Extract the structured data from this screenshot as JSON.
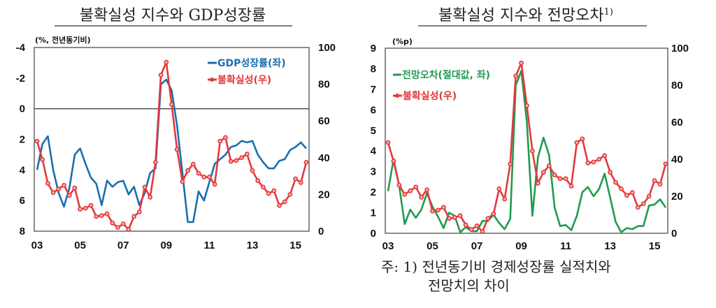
{
  "colors": {
    "gdp": "#1a6fad",
    "uncertainty": "#e3393c",
    "forecast_error": "#1f9b4f"
  },
  "footnote": {
    "line1": "주: 1) 전년동기비 경제성장률 실적치와",
    "line2": "전망치의 차이"
  },
  "chart_data": [
    {
      "type": "line",
      "title": "불확실성 지수와 GDP성장률",
      "unit_label": "(%, 전년동기비)",
      "x_start": "2003Q1",
      "x_frequency": "quarterly",
      "x_tick_labels": [
        "03",
        "05",
        "07",
        "09",
        "11",
        "13",
        "15"
      ],
      "left_axis": {
        "range": [
          -4,
          8
        ],
        "inverted": true,
        "ticks": [
          "-4",
          "-2",
          "0",
          "2",
          "4",
          "6",
          "8"
        ]
      },
      "right_axis": {
        "range": [
          0,
          100
        ],
        "ticks": [
          "100",
          "80",
          "60",
          "40",
          "20",
          "0"
        ]
      },
      "reference_line": 0,
      "series": [
        {
          "name": "GDP성장률(좌)",
          "axis": "left",
          "marker": "none",
          "color_key": "gdp",
          "values": [
            4.0,
            2.3,
            1.8,
            4.0,
            5.5,
            6.4,
            5.2,
            3.0,
            2.6,
            3.6,
            4.5,
            4.9,
            6.3,
            4.7,
            5.1,
            4.8,
            4.7,
            5.6,
            5.1,
            6.3,
            5.5,
            4.2,
            3.9,
            -1.6,
            -1.9,
            -1.2,
            1.1,
            4.2,
            7.4,
            7.4,
            5.4,
            6.0,
            4.8,
            3.6,
            3.3,
            3.0,
            2.5,
            2.4,
            2.1,
            2.2,
            2.1,
            3.0,
            3.5,
            3.9,
            3.9,
            3.4,
            3.3,
            2.7,
            2.5,
            2.2,
            2.6
          ]
        },
        {
          "name": "불확실성(우)",
          "axis": "right",
          "marker": "circle",
          "color_key": "uncertainty",
          "values": [
            49,
            39,
            26,
            21,
            23,
            25,
            19.5,
            23.5,
            12,
            12.5,
            14,
            8,
            8.5,
            9.5,
            4.5,
            2,
            4,
            1,
            8,
            10.5,
            24,
            18.5,
            37.5,
            85,
            92,
            69,
            44.5,
            27,
            33,
            36.5,
            31.5,
            29.5,
            29.5,
            25.5,
            49,
            51,
            38,
            38.5,
            40,
            42,
            33,
            27.5,
            24,
            20.5,
            22,
            14,
            16,
            20,
            28.5,
            26.5,
            37.5
          ]
        }
      ],
      "legend": "top-right"
    },
    {
      "type": "line",
      "title": "불확실성 지수와 전망오차",
      "title_superscript": "1)",
      "unit_label": "(%p)",
      "x_start": "2003Q1",
      "x_frequency": "quarterly",
      "x_tick_labels": [
        "03",
        "05",
        "07",
        "09",
        "11",
        "13",
        "15"
      ],
      "left_axis": {
        "range": [
          0,
          9
        ],
        "inverted": false,
        "ticks": [
          "9",
          "8",
          "7",
          "6",
          "5",
          "4",
          "3",
          "2",
          "1",
          "0"
        ]
      },
      "right_axis": {
        "range": [
          0,
          100
        ],
        "ticks": [
          "100",
          "80",
          "60",
          "40",
          "20",
          "0"
        ]
      },
      "series": [
        {
          "name": "전망오차(절대값, 좌)",
          "axis": "left",
          "marker": "none",
          "color_key": "forecast_error",
          "values": [
            2.05,
            3.6,
            2.3,
            0.45,
            1.15,
            0.75,
            1.15,
            1.95,
            1.3,
            0.8,
            0.25,
            1.0,
            0.85,
            0.05,
            0.3,
            0.1,
            0.1,
            0.6,
            0.6,
            0.9,
            0.5,
            0.2,
            0.7,
            7.2,
            7.9,
            5.4,
            0.85,
            3.7,
            4.65,
            3.8,
            1.25,
            0.35,
            0.4,
            0.15,
            0.85,
            2.0,
            2.25,
            1.8,
            2.15,
            2.9,
            1.75,
            0.55,
            0.05,
            0.25,
            0.2,
            0.35,
            0.35,
            1.35,
            1.4,
            1.65,
            1.25
          ]
        },
        {
          "name": "불확실성(우)",
          "axis": "right",
          "marker": "circle",
          "color_key": "uncertainty",
          "values": [
            49,
            39,
            26,
            21,
            23,
            25,
            19.5,
            23.5,
            12,
            12.5,
            14,
            8,
            8.5,
            9.5,
            4.5,
            2,
            4,
            1,
            8,
            10.5,
            24,
            18.5,
            37.5,
            85,
            92,
            69,
            44.5,
            27,
            33,
            36.5,
            31.5,
            29.5,
            29.5,
            25.5,
            49,
            51,
            38,
            38.5,
            40,
            42,
            33,
            27.5,
            24,
            20.5,
            22,
            14,
            16,
            20,
            28.5,
            26.5,
            37.5
          ]
        }
      ],
      "legend": "top-left"
    }
  ]
}
